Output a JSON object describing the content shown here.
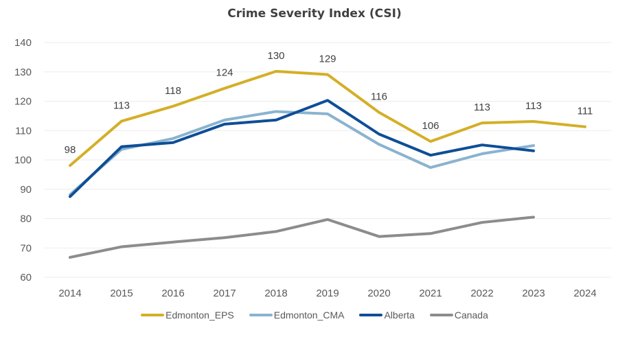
{
  "chart_data": {
    "type": "line",
    "title": "Crime Severity Index (CSI)",
    "xlabel": "",
    "ylabel": "",
    "x": [
      "2014",
      "2015",
      "2016",
      "2017",
      "2018",
      "2019",
      "2020",
      "2021",
      "2022",
      "2023",
      "2024"
    ],
    "ylim": [
      60,
      140
    ],
    "yticks": [
      "60",
      "70",
      "80",
      "90",
      "100",
      "110",
      "120",
      "130",
      "140"
    ],
    "grid": true,
    "legend_position": "bottom",
    "series": [
      {
        "name": "Edmonton_EPS",
        "color": "#D4AF27",
        "values": [
          98.1,
          113.2,
          118.3,
          124.4,
          130.2,
          129.1,
          116.2,
          106.3,
          112.6,
          113.1,
          111.3
        ],
        "data_labels": [
          "98",
          "113",
          "118",
          "124",
          "130",
          "129",
          "116",
          "106",
          "113",
          "113",
          "111"
        ]
      },
      {
        "name": "Edmonton_CMA",
        "color": "#8AB3CF",
        "values": [
          88.2,
          103.6,
          107.3,
          113.6,
          116.5,
          115.7,
          105.3,
          97.4,
          102.1,
          104.9,
          null
        ]
      },
      {
        "name": "Alberta",
        "color": "#0E4E96",
        "values": [
          87.5,
          104.5,
          105.9,
          112.2,
          113.6,
          120.3,
          108.8,
          101.6,
          105.1,
          103.1,
          null
        ]
      },
      {
        "name": "Canada",
        "color": "#8C8C8C",
        "values": [
          66.8,
          70.4,
          72.0,
          73.5,
          75.6,
          79.7,
          73.9,
          74.9,
          78.7,
          80.5,
          null
        ]
      }
    ]
  }
}
